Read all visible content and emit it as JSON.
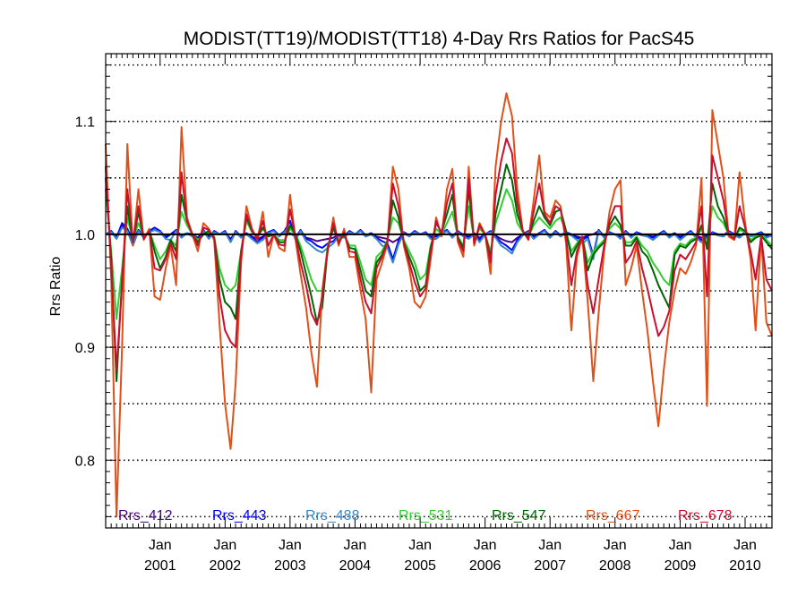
{
  "chart_data": {
    "type": "line",
    "title": "MODIST(TT19)/MODIST(TT18) 4-Day Rrs Ratios for PacS45",
    "xlabel": "",
    "ylabel": "Rrs Ratio",
    "xlim": [
      "2000-03-01",
      "2010-06-01"
    ],
    "ylim": [
      0.74,
      1.16
    ],
    "y_ticks": [
      "0.8",
      "0.9",
      "1.0",
      "1.1"
    ],
    "y_ticks_values": [
      0.8,
      0.9,
      1.0,
      1.1
    ],
    "y_gridlines": [
      0.75,
      0.8,
      0.85,
      0.9,
      0.95,
      1.05,
      1.1,
      1.15
    ],
    "reference_line": 1.0,
    "x_ticks": [
      {
        "month": "Jan",
        "year": "2001",
        "date": "2001-01-01"
      },
      {
        "month": "Jan",
        "year": "2002",
        "date": "2002-01-01"
      },
      {
        "month": "Jan",
        "year": "2003",
        "date": "2003-01-01"
      },
      {
        "month": "Jan",
        "year": "2004",
        "date": "2004-01-01"
      },
      {
        "month": "Jan",
        "year": "2005",
        "date": "2005-01-01"
      },
      {
        "month": "Jan",
        "year": "2006",
        "date": "2006-01-01"
      },
      {
        "month": "Jan",
        "year": "2007",
        "date": "2007-01-01"
      },
      {
        "month": "Jan",
        "year": "2008",
        "date": "2008-01-01"
      },
      {
        "month": "Jan",
        "year": "2009",
        "date": "2009-01-01"
      },
      {
        "month": "Jan",
        "year": "2010",
        "date": "2010-01-01"
      }
    ],
    "grid": "dotted horizontal",
    "legend_position": "bottom",
    "x": [
      "2000-03-01",
      "2000-04-01",
      "2000-05-01",
      "2000-06-01",
      "2000-07-01",
      "2000-08-01",
      "2000-09-01",
      "2000-10-01",
      "2000-11-01",
      "2000-12-01",
      "2001-01-01",
      "2001-02-01",
      "2001-03-01",
      "2001-04-01",
      "2001-05-01",
      "2001-06-01",
      "2001-07-01",
      "2001-08-01",
      "2001-09-01",
      "2001-10-01",
      "2001-11-01",
      "2001-12-01",
      "2002-01-01",
      "2002-02-01",
      "2002-03-01",
      "2002-04-01",
      "2002-05-01",
      "2002-06-01",
      "2002-07-01",
      "2002-08-01",
      "2002-09-01",
      "2002-10-01",
      "2002-11-01",
      "2002-12-01",
      "2003-01-01",
      "2003-02-01",
      "2003-03-01",
      "2003-04-01",
      "2003-05-01",
      "2003-06-01",
      "2003-07-01",
      "2003-08-01",
      "2003-09-01",
      "2003-10-01",
      "2003-11-01",
      "2003-12-01",
      "2004-01-01",
      "2004-02-01",
      "2004-03-01",
      "2004-04-01",
      "2004-05-01",
      "2004-06-01",
      "2004-07-01",
      "2004-08-01",
      "2004-09-01",
      "2004-10-01",
      "2004-11-01",
      "2004-12-01",
      "2005-01-01",
      "2005-02-01",
      "2005-03-01",
      "2005-04-01",
      "2005-05-01",
      "2005-06-01",
      "2005-07-01",
      "2005-08-01",
      "2005-09-01",
      "2005-10-01",
      "2005-11-01",
      "2005-12-01",
      "2006-01-01",
      "2006-02-01",
      "2006-03-01",
      "2006-04-01",
      "2006-05-01",
      "2006-06-01",
      "2006-07-01",
      "2006-08-01",
      "2006-09-01",
      "2006-10-01",
      "2006-11-01",
      "2006-12-01",
      "2007-01-01",
      "2007-02-01",
      "2007-03-01",
      "2007-04-01",
      "2007-05-01",
      "2007-06-01",
      "2007-07-01",
      "2007-08-01",
      "2007-09-01",
      "2007-10-01",
      "2007-11-01",
      "2007-12-01",
      "2008-01-01",
      "2008-02-01",
      "2008-03-01",
      "2008-04-01",
      "2008-05-01",
      "2008-06-01",
      "2008-07-01",
      "2008-08-01",
      "2008-09-01",
      "2008-10-01",
      "2008-11-01",
      "2008-12-01",
      "2009-01-01",
      "2009-02-01",
      "2009-03-01",
      "2009-04-01",
      "2009-05-01",
      "2009-06-01",
      "2009-07-01",
      "2009-08-01",
      "2009-09-01",
      "2009-10-01",
      "2009-11-01",
      "2009-12-01",
      "2010-01-01",
      "2010-02-01",
      "2010-03-01",
      "2010-04-01",
      "2010-05-01",
      "2010-06-01"
    ],
    "series": [
      {
        "name": "Rrs_412",
        "color": "#4b0082",
        "values": [
          1.0,
          1.002,
          0.998,
          1.008,
          1.004,
          0.997,
          1.003,
          0.999,
          1.002,
          1.004,
          1.002,
          0.998,
          1.0,
          1.003,
          0.999,
          1.001,
          1.0,
          0.997,
          1.003,
          0.998,
          1.002,
          1.0,
          1.002,
          0.996,
          1.002,
          0.999,
          1.001,
          0.998,
          0.996,
          0.998,
          1.001,
          1.003,
          0.999,
          1.002,
          1.001,
          0.998,
          1.003,
          0.997,
          0.996,
          0.994,
          0.995,
          0.996,
          0.997,
          1.0,
          0.999,
          1.002,
          1.0,
          1.003,
          0.999,
          1.001,
          0.998,
          0.997,
          0.996,
          0.993,
          0.996,
          1.001,
          0.999,
          1.002,
          1.0,
          1.001,
          0.998,
          0.999,
          1.001,
          1.003,
          0.999,
          1.002,
          1.0,
          0.998,
          1.001,
          0.997,
          1.0,
          1.002,
          0.999,
          0.996,
          0.994,
          0.993,
          0.997,
          1.0,
          1.002,
          0.998,
          1.001,
          1.003,
          0.999,
          1.002,
          0.999,
          1.001,
          1.0,
          0.998,
          0.997,
          0.999,
          1.0,
          1.003,
          0.999,
          1.001,
          1.0,
          0.998,
          1.002,
          0.999,
          1.001,
          1.0,
          0.999,
          0.998,
          1.0,
          1.002,
          0.999,
          1.001,
          0.998,
          1.0,
          1.002,
          0.999,
          0.997,
          0.999,
          1.001,
          1.0,
          0.999,
          1.002,
          1.0,
          0.999,
          1.001,
          0.999,
          1.0,
          1.001,
          0.999,
          1.0
        ]
      },
      {
        "name": "Rrs_443",
        "color": "#0000ff",
        "values": [
          1.0,
          1.003,
          0.997,
          1.01,
          1.005,
          0.993,
          1.004,
          0.998,
          1.003,
          1.006,
          1.003,
          0.997,
          1.0,
          1.004,
          0.998,
          1.001,
          0.999,
          0.995,
          1.004,
          0.997,
          1.003,
          1.0,
          1.003,
          0.994,
          1.003,
          0.998,
          1.001,
          0.997,
          0.994,
          0.997,
          1.002,
          1.004,
          0.999,
          1.003,
          1.012,
          0.996,
          1.004,
          0.996,
          0.994,
          0.99,
          0.988,
          0.992,
          0.994,
          0.999,
          0.998,
          1.003,
          1.0,
          1.004,
          0.999,
          1.001,
          0.997,
          0.994,
          0.992,
          0.978,
          0.994,
          1.002,
          0.999,
          1.003,
          1.0,
          1.002,
          0.997,
          0.998,
          1.001,
          1.004,
          0.998,
          1.003,
          0.999,
          0.997,
          1.001,
          0.995,
          1.0,
          1.003,
          0.998,
          0.993,
          0.99,
          0.986,
          0.995,
          1.0,
          1.003,
          0.997,
          1.001,
          1.004,
          0.998,
          1.003,
          0.999,
          1.002,
          1.0,
          0.997,
          0.995,
          0.998,
          0.981,
          1.004,
          0.998,
          1.002,
          1.0,
          0.997,
          1.003,
          0.998,
          1.002,
          1.0,
          0.999,
          0.997,
          1.0,
          1.003,
          0.998,
          1.001,
          0.997,
          1.0,
          1.003,
          0.998,
          0.995,
          0.998,
          1.002,
          1.0,
          0.999,
          1.003,
          1.0,
          0.998,
          1.002,
          0.999,
          1.0,
          1.002,
          0.998,
          1.0
        ]
      },
      {
        "name": "Rrs_488",
        "color": "#3a86c8",
        "values": [
          1.0,
          1.002,
          0.996,
          1.006,
          1.003,
          0.99,
          1.003,
          0.997,
          1.002,
          1.004,
          1.002,
          0.996,
          0.995,
          1.003,
          0.997,
          1.001,
          0.998,
          0.992,
          1.003,
          0.996,
          1.002,
          1.0,
          1.002,
          0.993,
          1.002,
          0.997,
          1.0,
          0.996,
          0.992,
          0.995,
          1.001,
          1.003,
          0.998,
          1.002,
          1.008,
          0.995,
          1.003,
          0.994,
          0.99,
          0.986,
          0.984,
          0.988,
          0.992,
          0.998,
          0.997,
          1.002,
          1.0,
          1.003,
          0.998,
          1.0,
          0.996,
          0.99,
          0.988,
          0.975,
          0.991,
          1.001,
          0.998,
          1.002,
          1.0,
          1.001,
          0.996,
          0.996,
          1.0,
          1.003,
          0.997,
          1.002,
          0.998,
          0.996,
          1.0,
          0.993,
          1.0,
          1.002,
          0.997,
          0.99,
          0.987,
          0.983,
          0.993,
          0.999,
          1.002,
          0.996,
          1.0,
          1.003,
          0.997,
          1.002,
          0.998,
          1.001,
          0.999,
          0.995,
          0.992,
          0.996,
          0.978,
          1.003,
          0.997,
          1.001,
          1.0,
          0.996,
          1.002,
          0.997,
          1.001,
          0.999,
          0.998,
          0.995,
          0.999,
          1.002,
          0.997,
          1.0,
          0.995,
          0.999,
          1.002,
          0.997,
          0.993,
          0.997,
          1.001,
          0.999,
          0.998,
          1.002,
          0.999,
          0.997,
          1.001,
          0.998,
          0.999,
          1.001,
          0.997,
          0.999
        ]
      },
      {
        "name": "Rrs_531",
        "color": "#32cd32",
        "values": [
          1.04,
          0.985,
          0.925,
          0.97,
          1.015,
          0.995,
          1.01,
          0.998,
          1.003,
          0.99,
          0.978,
          0.985,
          0.995,
          0.99,
          1.02,
          1.008,
          1.0,
          0.995,
          1.0,
          1.002,
          0.998,
          0.97,
          0.955,
          0.95,
          0.955,
          0.985,
          1.012,
          1.002,
          0.998,
          1.005,
          0.999,
          1.0,
          0.995,
          0.995,
          1.005,
          1.0,
          0.99,
          0.975,
          0.96,
          0.95,
          0.95,
          0.99,
          1.005,
          0.995,
          1.0,
          0.99,
          0.99,
          0.975,
          0.96,
          0.955,
          0.98,
          0.985,
          0.995,
          1.015,
          1.01,
          0.995,
          0.985,
          0.975,
          0.96,
          0.965,
          0.99,
          1.005,
          1.0,
          1.01,
          1.02,
          0.998,
          0.99,
          1.025,
          0.995,
          1.005,
          1.0,
          0.985,
          1.01,
          1.025,
          1.04,
          1.03,
          1.01,
          1.002,
          0.998,
          1.008,
          1.015,
          1.01,
          1.005,
          1.012,
          1.015,
          1.002,
          0.985,
          0.992,
          0.998,
          0.975,
          0.985,
          0.99,
          0.995,
          1.005,
          1.01,
          1.005,
          0.993,
          0.993,
          0.998,
          0.99,
          0.985,
          0.975,
          0.968,
          0.96,
          0.955,
          0.985,
          0.992,
          0.99,
          0.995,
          0.997,
          1.005,
          0.99,
          1.025,
          1.015,
          1.01,
          1.0,
          0.997,
          1.004,
          1.002,
          0.995,
          0.998,
          0.999,
          0.995,
          0.99
        ]
      },
      {
        "name": "Rrs_547",
        "color": "#006400",
        "values": [
          1.05,
          0.978,
          0.87,
          0.96,
          1.025,
          0.992,
          1.02,
          0.996,
          1.004,
          0.985,
          0.97,
          0.98,
          0.995,
          0.985,
          1.035,
          1.012,
          1.0,
          0.993,
          1.0,
          1.003,
          0.997,
          0.96,
          0.94,
          0.935,
          0.925,
          0.985,
          1.015,
          1.003,
          0.997,
          1.006,
          0.998,
          1.0,
          0.993,
          0.993,
          1.008,
          1.0,
          0.985,
          0.965,
          0.945,
          0.922,
          0.935,
          0.988,
          1.006,
          0.993,
          1.0,
          0.988,
          0.987,
          0.968,
          0.95,
          0.945,
          0.975,
          0.982,
          0.994,
          1.03,
          1.015,
          0.993,
          0.98,
          0.968,
          0.95,
          0.955,
          0.988,
          1.01,
          1.002,
          1.018,
          1.035,
          0.997,
          0.988,
          1.04,
          0.993,
          1.008,
          1.0,
          0.98,
          1.018,
          1.04,
          1.062,
          1.048,
          1.018,
          1.003,
          0.997,
          1.012,
          1.025,
          1.015,
          1.008,
          1.02,
          1.022,
          1.003,
          0.98,
          0.99,
          0.998,
          0.968,
          0.982,
          0.988,
          0.993,
          1.008,
          1.016,
          1.008,
          0.99,
          0.99,
          0.997,
          0.985,
          0.98,
          0.968,
          0.955,
          0.945,
          0.935,
          0.982,
          0.99,
          0.988,
          0.993,
          0.996,
          1.008,
          0.987,
          1.045,
          1.025,
          1.015,
          1.0,
          0.996,
          1.006,
          1.003,
          0.993,
          0.997,
          0.999,
          0.993,
          0.987
        ]
      },
      {
        "name": "Rrs_667",
        "color": "#e0501a",
        "values": [
          1.08,
          0.96,
          0.75,
          0.9,
          1.08,
          0.99,
          1.04,
          0.995,
          1.005,
          0.945,
          0.942,
          0.97,
          0.99,
          0.955,
          1.095,
          1.015,
          1.0,
          0.985,
          1.01,
          1.005,
          0.995,
          0.92,
          0.85,
          0.81,
          0.868,
          0.975,
          1.025,
          1.005,
          0.995,
          1.02,
          0.98,
          1.0,
          0.988,
          0.985,
          1.035,
          0.995,
          0.965,
          0.935,
          0.895,
          0.865,
          0.95,
          0.985,
          1.015,
          0.99,
          1.005,
          0.98,
          0.98,
          0.95,
          0.925,
          0.86,
          0.96,
          0.975,
          0.992,
          1.06,
          1.04,
          0.99,
          0.97,
          0.94,
          0.935,
          0.945,
          0.978,
          1.015,
          0.998,
          1.04,
          1.058,
          0.993,
          0.98,
          1.06,
          0.99,
          1.01,
          1.0,
          0.965,
          1.06,
          1.1,
          1.125,
          1.105,
          1.04,
          1.003,
          0.995,
          1.03,
          1.07,
          1.02,
          1.015,
          1.03,
          1.025,
          0.992,
          0.915,
          0.98,
          0.998,
          0.94,
          0.87,
          0.93,
          0.985,
          1.02,
          1.04,
          1.048,
          0.955,
          0.97,
          0.99,
          0.95,
          0.915,
          0.87,
          0.83,
          0.88,
          0.922,
          0.95,
          0.97,
          0.965,
          0.975,
          0.99,
          1.05,
          0.848,
          1.11,
          1.08,
          1.05,
          0.998,
          0.995,
          1.055,
          1.01,
          0.978,
          0.915,
          0.998,
          0.922,
          0.91
        ]
      },
      {
        "name": "Rrs_678",
        "color": "#c8102e",
        "values": [
          1.06,
          0.97,
          0.88,
          0.955,
          1.04,
          0.993,
          1.025,
          0.996,
          1.003,
          0.97,
          0.968,
          0.978,
          0.992,
          0.978,
          1.055,
          1.012,
          1.0,
          0.99,
          1.006,
          1.004,
          0.996,
          0.945,
          0.915,
          0.905,
          0.9,
          0.982,
          1.018,
          1.004,
          0.996,
          1.012,
          0.99,
          1.0,
          0.991,
          0.99,
          1.022,
          0.998,
          0.975,
          0.955,
          0.93,
          0.92,
          0.945,
          0.987,
          1.01,
          0.992,
          1.002,
          0.985,
          0.984,
          0.96,
          0.94,
          0.93,
          0.97,
          0.98,
          0.993,
          1.045,
          1.025,
          0.992,
          0.975,
          0.958,
          0.945,
          0.952,
          0.984,
          1.012,
          1.0,
          1.028,
          1.045,
          0.995,
          0.985,
          1.05,
          0.992,
          1.008,
          1.0,
          0.975,
          1.035,
          1.065,
          1.085,
          1.072,
          1.028,
          1.003,
          0.996,
          1.02,
          1.045,
          1.018,
          1.01,
          1.025,
          1.022,
          0.997,
          0.955,
          0.985,
          0.998,
          0.955,
          0.93,
          0.96,
          0.99,
          1.012,
          1.025,
          1.025,
          0.975,
          0.982,
          0.994,
          0.97,
          0.952,
          0.93,
          0.91,
          0.918,
          0.932,
          0.968,
          0.982,
          0.978,
          0.985,
          0.993,
          1.025,
          0.945,
          1.07,
          1.05,
          1.03,
          1.0,
          0.996,
          1.025,
          1.006,
          0.985,
          0.96,
          0.998,
          0.96,
          0.95
        ]
      }
    ]
  }
}
